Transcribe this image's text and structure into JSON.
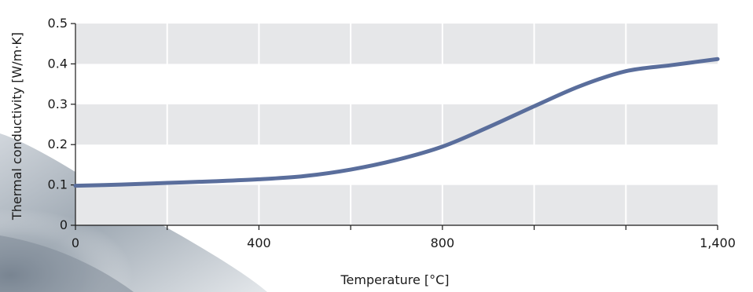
{
  "chart_data": {
    "type": "line",
    "xlabel": "Temperature [°C]",
    "ylabel": "Thermal conductivity [W/m·K]",
    "xlim": [
      0,
      1400
    ],
    "ylim": [
      0,
      0.5
    ],
    "x_ticks": [
      0,
      200,
      400,
      600,
      800,
      1000,
      1200,
      1400
    ],
    "x_tick_labels": [
      {
        "value": 0,
        "label": "0"
      },
      {
        "value": 400,
        "label": "400"
      },
      {
        "value": 800,
        "label": "800"
      },
      {
        "value": 1400,
        "label": "1,400"
      }
    ],
    "y_ticks": [
      0,
      0.1,
      0.2,
      0.3,
      0.4,
      0.5
    ],
    "y_tick_labels": [
      "0",
      "0.1",
      "0.2",
      "0.3",
      "0.4",
      "0.5"
    ],
    "grid": true,
    "band_colors": [
      "#e6e7e9",
      "#ffffff"
    ],
    "series": [
      {
        "color": "#5a6e9c",
        "x": [
          0,
          100,
          200,
          300,
          400,
          500,
          600,
          700,
          800,
          900,
          1000,
          1100,
          1200,
          1300,
          1400
        ],
        "y": [
          0.098,
          0.101,
          0.105,
          0.109,
          0.114,
          0.122,
          0.138,
          0.162,
          0.195,
          0.243,
          0.295,
          0.345,
          0.382,
          0.397,
          0.412
        ]
      }
    ]
  }
}
